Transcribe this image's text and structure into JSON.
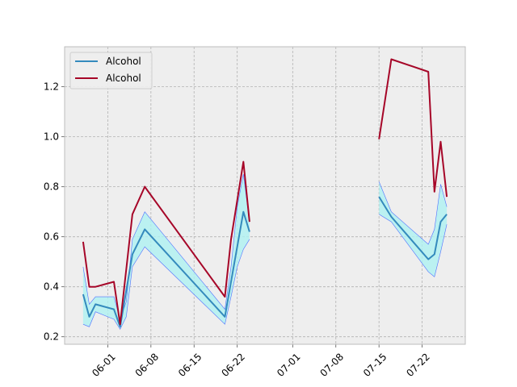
{
  "chart_data": {
    "type": "line",
    "x_axis": {
      "type": "date",
      "range": [
        "2021-05-25",
        "2021-07-29"
      ],
      "ticks": [
        {
          "date": "2021-06-01",
          "label": "06-01"
        },
        {
          "date": "2021-06-08",
          "label": "06-08"
        },
        {
          "date": "2021-06-15",
          "label": "06-15"
        },
        {
          "date": "2021-06-22",
          "label": "06-22"
        },
        {
          "date": "2021-07-01",
          "label": "07-01"
        },
        {
          "date": "2021-07-08",
          "label": "07-08"
        },
        {
          "date": "2021-07-15",
          "label": "07-15"
        },
        {
          "date": "2021-07-22",
          "label": "07-22"
        }
      ],
      "tick_label_rotation_deg": 45
    },
    "y_axis": {
      "range": [
        0.17,
        1.36
      ],
      "ticks": [
        0.2,
        0.4,
        0.6,
        0.8,
        1.0,
        1.2
      ],
      "tick_labels": [
        "0.2",
        "0.4",
        "0.6",
        "0.8",
        "1.0",
        "1.2"
      ]
    },
    "grid": true,
    "grid_style": "dashed",
    "background": "#eeeeee",
    "legend": {
      "position": "top-left",
      "entries": [
        {
          "label": "Alcohol",
          "color": "#348abd"
        },
        {
          "label": "Alcohol",
          "color": "#a60628"
        }
      ]
    },
    "band": {
      "fill_color": "#aef1f1",
      "edge_color": "#4f6fff",
      "segments": [
        [
          {
            "x": "2021-05-28",
            "lo": 0.25,
            "hi": 0.48
          },
          {
            "x": "2021-05-29",
            "lo": 0.24,
            "hi": 0.33
          },
          {
            "x": "2021-05-30",
            "lo": 0.3,
            "hi": 0.36
          },
          {
            "x": "2021-06-02",
            "lo": 0.27,
            "hi": 0.36
          },
          {
            "x": "2021-06-03",
            "lo": 0.23,
            "hi": 0.27
          },
          {
            "x": "2021-06-04",
            "lo": 0.28,
            "hi": 0.34
          },
          {
            "x": "2021-06-05",
            "lo": 0.48,
            "hi": 0.59
          },
          {
            "x": "2021-06-07",
            "lo": 0.56,
            "hi": 0.7
          },
          {
            "x": "2021-06-20",
            "lo": 0.25,
            "hi": 0.31
          },
          {
            "x": "2021-06-21",
            "lo": 0.36,
            "hi": 0.48
          },
          {
            "x": "2021-06-22",
            "lo": 0.48,
            "hi": 0.72
          },
          {
            "x": "2021-06-23",
            "lo": 0.55,
            "hi": 0.85
          },
          {
            "x": "2021-06-24",
            "lo": 0.59,
            "hi": 0.66
          }
        ],
        [
          {
            "x": "2021-07-15",
            "lo": 0.69,
            "hi": 0.82
          },
          {
            "x": "2021-07-17",
            "lo": 0.66,
            "hi": 0.7
          },
          {
            "x": "2021-07-23",
            "lo": 0.46,
            "hi": 0.57
          },
          {
            "x": "2021-07-24",
            "lo": 0.44,
            "hi": 0.63
          },
          {
            "x": "2021-07-25",
            "lo": 0.54,
            "hi": 0.81
          },
          {
            "x": "2021-07-26",
            "lo": 0.65,
            "hi": 0.72
          }
        ]
      ]
    },
    "series": [
      {
        "name": "Alcohol",
        "color": "#348abd",
        "segments": [
          [
            {
              "x": "2021-05-28",
              "y": 0.37
            },
            {
              "x": "2021-05-29",
              "y": 0.28
            },
            {
              "x": "2021-05-30",
              "y": 0.33
            },
            {
              "x": "2021-06-02",
              "y": 0.31
            },
            {
              "x": "2021-06-03",
              "y": 0.24
            },
            {
              "x": "2021-06-05",
              "y": 0.53
            },
            {
              "x": "2021-06-07",
              "y": 0.63
            },
            {
              "x": "2021-06-20",
              "y": 0.28
            },
            {
              "x": "2021-06-21",
              "y": 0.42
            },
            {
              "x": "2021-06-23",
              "y": 0.7
            },
            {
              "x": "2021-06-24",
              "y": 0.62
            }
          ],
          [
            {
              "x": "2021-07-15",
              "y": 0.76
            },
            {
              "x": "2021-07-17",
              "y": 0.68
            },
            {
              "x": "2021-07-23",
              "y": 0.51
            },
            {
              "x": "2021-07-24",
              "y": 0.53
            },
            {
              "x": "2021-07-25",
              "y": 0.66
            },
            {
              "x": "2021-07-26",
              "y": 0.69
            }
          ]
        ]
      },
      {
        "name": "Alcohol",
        "color": "#a60628",
        "segments": [
          [
            {
              "x": "2021-05-28",
              "y": 0.58
            },
            {
              "x": "2021-05-29",
              "y": 0.4
            },
            {
              "x": "2021-05-30",
              "y": 0.4
            },
            {
              "x": "2021-06-02",
              "y": 0.42
            },
            {
              "x": "2021-06-03",
              "y": 0.25
            },
            {
              "x": "2021-06-05",
              "y": 0.69
            },
            {
              "x": "2021-06-07",
              "y": 0.8
            },
            {
              "x": "2021-06-20",
              "y": 0.36
            },
            {
              "x": "2021-06-21",
              "y": 0.59
            },
            {
              "x": "2021-06-23",
              "y": 0.9
            },
            {
              "x": "2021-06-24",
              "y": 0.66
            }
          ],
          [
            {
              "x": "2021-07-15",
              "y": 0.99
            },
            {
              "x": "2021-07-17",
              "y": 1.31
            },
            {
              "x": "2021-07-23",
              "y": 1.26
            },
            {
              "x": "2021-07-24",
              "y": 0.78
            },
            {
              "x": "2021-07-25",
              "y": 0.98
            },
            {
              "x": "2021-07-26",
              "y": 0.76
            }
          ]
        ]
      }
    ]
  }
}
